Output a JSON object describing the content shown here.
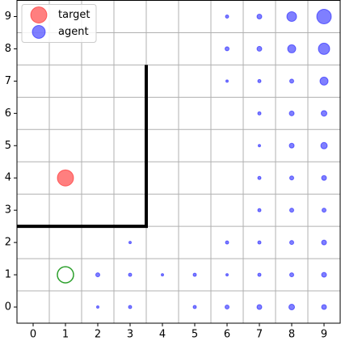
{
  "chart_data": {
    "type": "scatter",
    "xlim": [
      -0.5,
      9.5
    ],
    "ylim": [
      -0.5,
      9.5
    ],
    "xticks": [
      0,
      1,
      2,
      3,
      4,
      5,
      6,
      7,
      8,
      9
    ],
    "yticks": [
      0,
      1,
      2,
      3,
      4,
      5,
      6,
      7,
      8,
      9
    ],
    "xminorticks": [
      -0.5,
      0.5,
      1.5,
      2.5,
      3.5,
      4.5,
      5.5,
      6.5,
      7.5,
      8.5,
      9.5
    ],
    "yminorticks": [
      -0.5,
      0.5,
      1.5,
      2.5,
      3.5,
      4.5,
      5.5,
      6.5,
      7.5,
      8.5,
      9.5
    ],
    "grid": true,
    "legend": "upper left",
    "series": [
      {
        "name": "target",
        "color": "#ff0000",
        "alpha": 0.5,
        "x": [
          1
        ],
        "y": [
          4
        ],
        "sizes": [
          10
        ]
      },
      {
        "name": "agent",
        "color": "#0000ff",
        "alpha": 0.5,
        "x": [
          6,
          7,
          8,
          9,
          6,
          7,
          8,
          9,
          6,
          7,
          8,
          9,
          7,
          8,
          9,
          7,
          8,
          9,
          7,
          8,
          9,
          7,
          8,
          9,
          3,
          6,
          7,
          8,
          9,
          2,
          3,
          4,
          5,
          6,
          7,
          8,
          9,
          2,
          3,
          5,
          6,
          7,
          8,
          9
        ],
        "y": [
          9,
          9,
          9,
          9,
          8,
          8,
          8,
          8,
          7,
          7,
          7,
          7,
          6,
          6,
          6,
          5,
          5,
          5,
          4,
          4,
          4,
          3,
          3,
          3,
          2,
          2,
          2,
          2,
          2,
          1,
          1,
          1,
          1,
          1,
          1,
          1,
          1,
          0,
          0,
          0,
          0,
          0,
          0,
          0
        ],
        "sizes": [
          2,
          3,
          6,
          9,
          2.5,
          3,
          5,
          7,
          1.5,
          2,
          2.5,
          5,
          2,
          3,
          3.5,
          1.5,
          3,
          4,
          2,
          2.5,
          3,
          2,
          2.5,
          2.5,
          1.5,
          2,
          2,
          2.5,
          3,
          2.5,
          2,
          1.5,
          2,
          1.5,
          2,
          2.5,
          3,
          1.5,
          2,
          2,
          2.5,
          3,
          3.5,
          3
        ]
      }
    ],
    "start": {
      "x": 1,
      "y": 1,
      "size": 10,
      "color": "#2ca02c"
    },
    "walls": [
      {
        "x": [
          -0.5,
          3.5,
          3.5
        ],
        "y": [
          2.5,
          2.5,
          7.5
        ],
        "color": "#000000"
      }
    ]
  }
}
